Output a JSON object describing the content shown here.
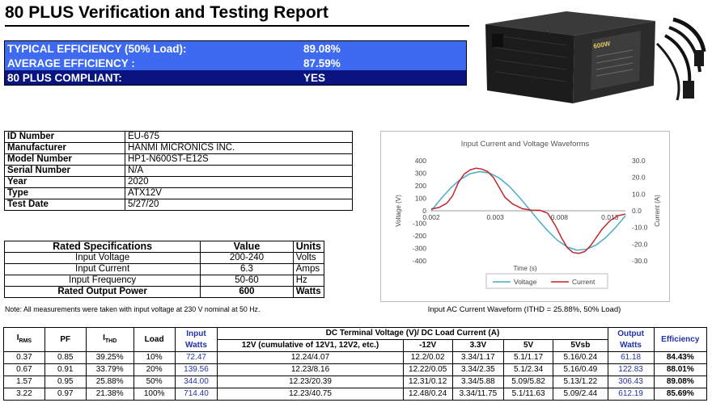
{
  "header": {
    "title": "80 PLUS Verification and Testing Report"
  },
  "summary": [
    {
      "label": "TYPICAL EFFICIENCY (50% Load):",
      "value": "89.08%"
    },
    {
      "label": "AVERAGE EFFICIENCY :",
      "value": "87.59%"
    },
    {
      "label": "80 PLUS COMPLIANT:",
      "value": "YES"
    }
  ],
  "photo": {
    "label_text": "600W"
  },
  "identity": [
    {
      "key": "ID Number",
      "value": "EU-675"
    },
    {
      "key": "Manufacturer",
      "value": "HANMI MICRONICS INC."
    },
    {
      "key": "Model Number",
      "value": "HP1-N600ST-E12S"
    },
    {
      "key": "Serial Number",
      "value": "N/A"
    },
    {
      "key": "Year",
      "value": "2020"
    },
    {
      "key": "Type",
      "value": "ATX12V"
    },
    {
      "key": "Test Date",
      "value": "5/27/20"
    }
  ],
  "rated": {
    "headers": [
      "Rated Specifications",
      "Value",
      "Units"
    ],
    "rows": [
      [
        "Input Voltage",
        "200-240",
        "Volts"
      ],
      [
        "Input Current",
        "6.3",
        "Amps"
      ],
      [
        "Input Frequency",
        "50-60",
        "Hz"
      ],
      [
        "Rated Output Power",
        "600",
        "Watts"
      ]
    ]
  },
  "note": "Note: All measurements were taken with input voltage at 230 V nominal at 50 Hz.",
  "chart_caption": "Input AC Current Waveform (ITHD = 25.88%, 50% Load)",
  "chart_data": {
    "type": "line",
    "title": "Input Current and Voltage Waveforms",
    "xlabel": "Time (s)",
    "ylabel": "Voltage (V)",
    "y2label": "Current (A)",
    "xticks": [
      "0.002",
      "0.003",
      "0.008",
      "0.013"
    ],
    "ylim": [
      -400,
      400
    ],
    "yticks": [
      400,
      300,
      200,
      100,
      0,
      -100,
      -200,
      -300,
      -400
    ],
    "y2lim": [
      -30,
      30
    ],
    "y2ticks": [
      "30.0",
      "20.0",
      "10.0",
      "0.0",
      "-10.0",
      "-20.0",
      "-30.0"
    ],
    "legend_position": "bottom",
    "series": [
      {
        "name": "Voltage",
        "color": "#4aacc6",
        "axis": "left",
        "points": [
          [
            0,
            0
          ],
          [
            0.05,
            96
          ],
          [
            0.1,
            182
          ],
          [
            0.15,
            251
          ],
          [
            0.2,
            296
          ],
          [
            0.25,
            313
          ],
          [
            0.3,
            302
          ],
          [
            0.35,
            262
          ],
          [
            0.4,
            198
          ],
          [
            0.45,
            115
          ],
          [
            0.5,
            22
          ],
          [
            0.55,
            -72
          ],
          [
            0.6,
            -160
          ],
          [
            0.65,
            -236
          ],
          [
            0.7,
            -289
          ],
          [
            0.75,
            -314
          ],
          [
            0.8,
            -308
          ],
          [
            0.85,
            -273
          ],
          [
            0.9,
            -212
          ],
          [
            0.95,
            -132
          ],
          [
            1.0,
            -40
          ]
        ]
      },
      {
        "name": "Current",
        "color": "#c0262c",
        "axis": "right",
        "points": [
          [
            0,
            1.0
          ],
          [
            0.04,
            2.0
          ],
          [
            0.08,
            4.5
          ],
          [
            0.11,
            9.0
          ],
          [
            0.14,
            17.0
          ],
          [
            0.17,
            22.0
          ],
          [
            0.2,
            24.5
          ],
          [
            0.23,
            25.5
          ],
          [
            0.26,
            25.0
          ],
          [
            0.29,
            23.5
          ],
          [
            0.32,
            20.0
          ],
          [
            0.35,
            14.0
          ],
          [
            0.38,
            8.0
          ],
          [
            0.42,
            4.0
          ],
          [
            0.47,
            1.2
          ],
          [
            0.52,
            0.3
          ],
          [
            0.56,
            0.3
          ],
          [
            0.6,
            -1.5
          ],
          [
            0.64,
            -9.0
          ],
          [
            0.67,
            -16.0
          ],
          [
            0.7,
            -22.0
          ],
          [
            0.73,
            -25.0
          ],
          [
            0.76,
            -25.5
          ],
          [
            0.79,
            -24.5
          ],
          [
            0.82,
            -21.0
          ],
          [
            0.85,
            -16.0
          ],
          [
            0.88,
            -11.0
          ],
          [
            0.92,
            -6.0
          ],
          [
            0.96,
            -3.0
          ],
          [
            1.0,
            -2.0
          ]
        ]
      }
    ]
  },
  "loads": {
    "head_irms": "I",
    "head_irms_sub": "RMS",
    "head_pf": "PF",
    "head_ithd": "I",
    "head_ithd_sub": "THD",
    "head_load": "Load",
    "head_input": "Input Watts",
    "head_dc": "DC Terminal Voltage (V)/ DC Load Current (A)",
    "head_12v": "12V (cumulative of 12V1, 12V2, etc.)",
    "head_m12v": "-12V",
    "head_33v": "3.3V",
    "head_5v": "5V",
    "head_5vsb": "5Vsb",
    "head_output": "Output Watts",
    "head_eff": "Efficiency",
    "rows": [
      {
        "irms": "0.37",
        "pf": "0.85",
        "ithd": "39.25%",
        "load": "10%",
        "input": "72.47",
        "v12": "12.24/4.07",
        "vm12": "12.2/0.02",
        "v33": "3.34/1.17",
        "v5": "5.1/1.17",
        "v5sb": "5.16/0.24",
        "output": "61.18",
        "eff": "84.43%"
      },
      {
        "irms": "0.67",
        "pf": "0.91",
        "ithd": "33.79%",
        "load": "20%",
        "input": "139.56",
        "v12": "12.23/8.16",
        "vm12": "12.22/0.05",
        "v33": "3.34/2.35",
        "v5": "5.1/2.34",
        "v5sb": "5.16/0.49",
        "output": "122.83",
        "eff": "88.01%"
      },
      {
        "irms": "1.57",
        "pf": "0.95",
        "ithd": "25.88%",
        "load": "50%",
        "input": "344.00",
        "v12": "12.23/20.39",
        "vm12": "12.31/0.12",
        "v33": "3.34/5.88",
        "v5": "5.09/5.82",
        "v5sb": "5.13/1.22",
        "output": "306.43",
        "eff": "89.08%"
      },
      {
        "irms": "3.22",
        "pf": "0.97",
        "ithd": "21.38%",
        "load": "100%",
        "input": "714.40",
        "v12": "12.23/40.75",
        "vm12": "12.48/0.24",
        "v33": "3.34/11.75",
        "v5": "5.1/11.63",
        "v5sb": "5.09/2.44",
        "output": "612.19",
        "eff": "85.69%"
      }
    ]
  }
}
